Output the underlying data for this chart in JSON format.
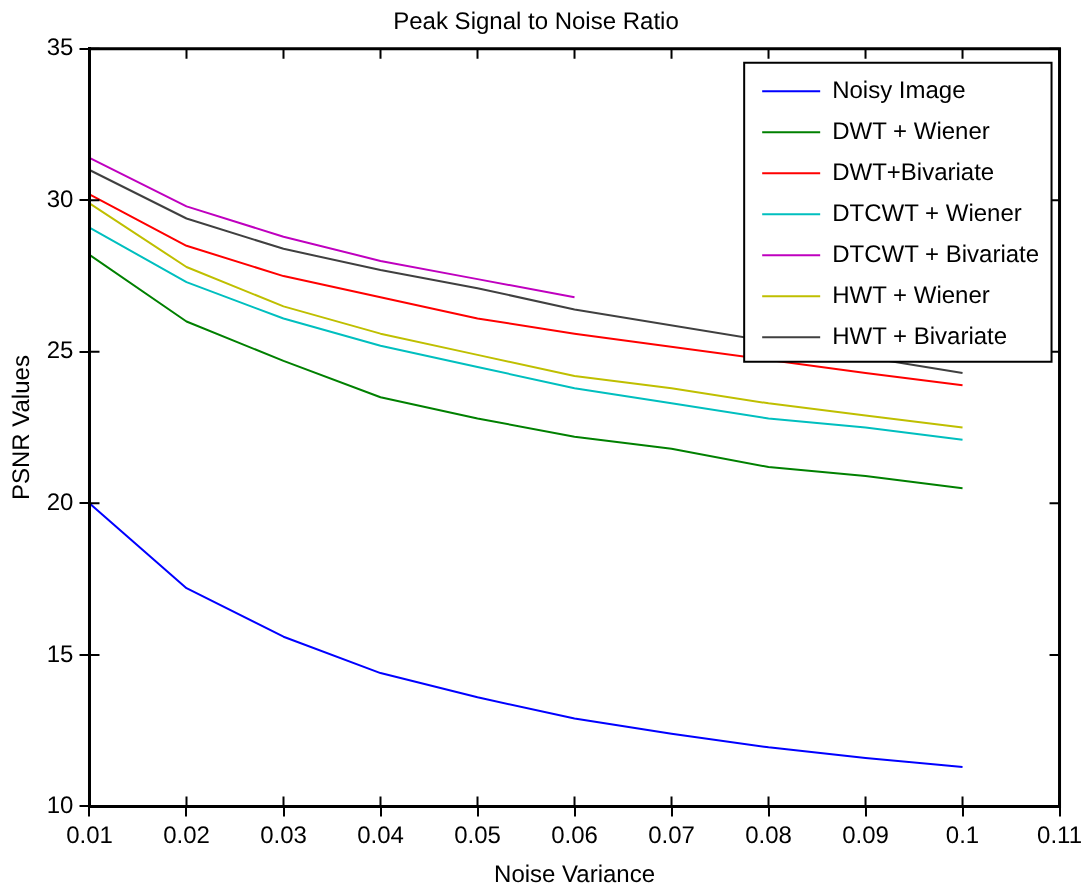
{
  "chart_data": {
    "type": "line",
    "title": "Peak Signal to Noise Ratio",
    "xlabel": "Noise Variance",
    "ylabel": "PSNR Values",
    "x": [
      0.01,
      0.02,
      0.03,
      0.04,
      0.05,
      0.06,
      0.07,
      0.08,
      0.09,
      0.1
    ],
    "xlim": [
      0.01,
      0.11
    ],
    "xticks": [
      0.01,
      0.02,
      0.03,
      0.04,
      0.05,
      0.06,
      0.07,
      0.08,
      0.09,
      0.1,
      0.11
    ],
    "ylim": [
      10,
      35
    ],
    "yticks": [
      10,
      15,
      20,
      25,
      30,
      35
    ],
    "grid": false,
    "legend": "top right",
    "marker": "none",
    "line_style": "solid",
    "series": [
      {
        "name": "Noisy Image",
        "color": "#0000ff",
        "values": [
          20,
          17.2,
          15.6,
          14.4,
          13.6,
          12.9,
          12.4,
          11.95,
          11.6,
          11.3
        ]
      },
      {
        "name": "DWT + Wiener",
        "color": "#008000",
        "values": [
          28.2,
          26.0,
          24.7,
          23.5,
          22.8,
          22.2,
          21.8,
          21.2,
          20.9,
          20.5
        ]
      },
      {
        "name": "DWT+Bivariate",
        "color": "#ff0000",
        "values": [
          30.2,
          28.5,
          27.5,
          26.8,
          26.1,
          25.6,
          null,
          null,
          24.3,
          23.9
        ]
      },
      {
        "name": "DTCWT + Wiener",
        "color": "#00bfbf",
        "values": [
          29.1,
          27.3,
          26.1,
          25.2,
          24.5,
          23.8,
          23.3,
          22.8,
          22.5,
          22.1
        ]
      },
      {
        "name": "DTCWT + Bivariate",
        "color": "#bf00bf",
        "values": [
          31.4,
          29.8,
          28.8,
          28.0,
          27.4,
          26.8,
          null,
          null,
          null,
          null
        ]
      },
      {
        "name": "HWT + Wiener",
        "color": "#bfbf00",
        "values": [
          29.9,
          27.8,
          26.5,
          25.6,
          24.9,
          24.2,
          23.8,
          23.3,
          22.9,
          22.5
        ]
      },
      {
        "name": "HWT + Bivariate",
        "color": "#404040",
        "values": [
          31.0,
          29.4,
          28.4,
          27.7,
          27.1,
          26.4,
          null,
          null,
          null,
          24.3
        ]
      }
    ]
  }
}
